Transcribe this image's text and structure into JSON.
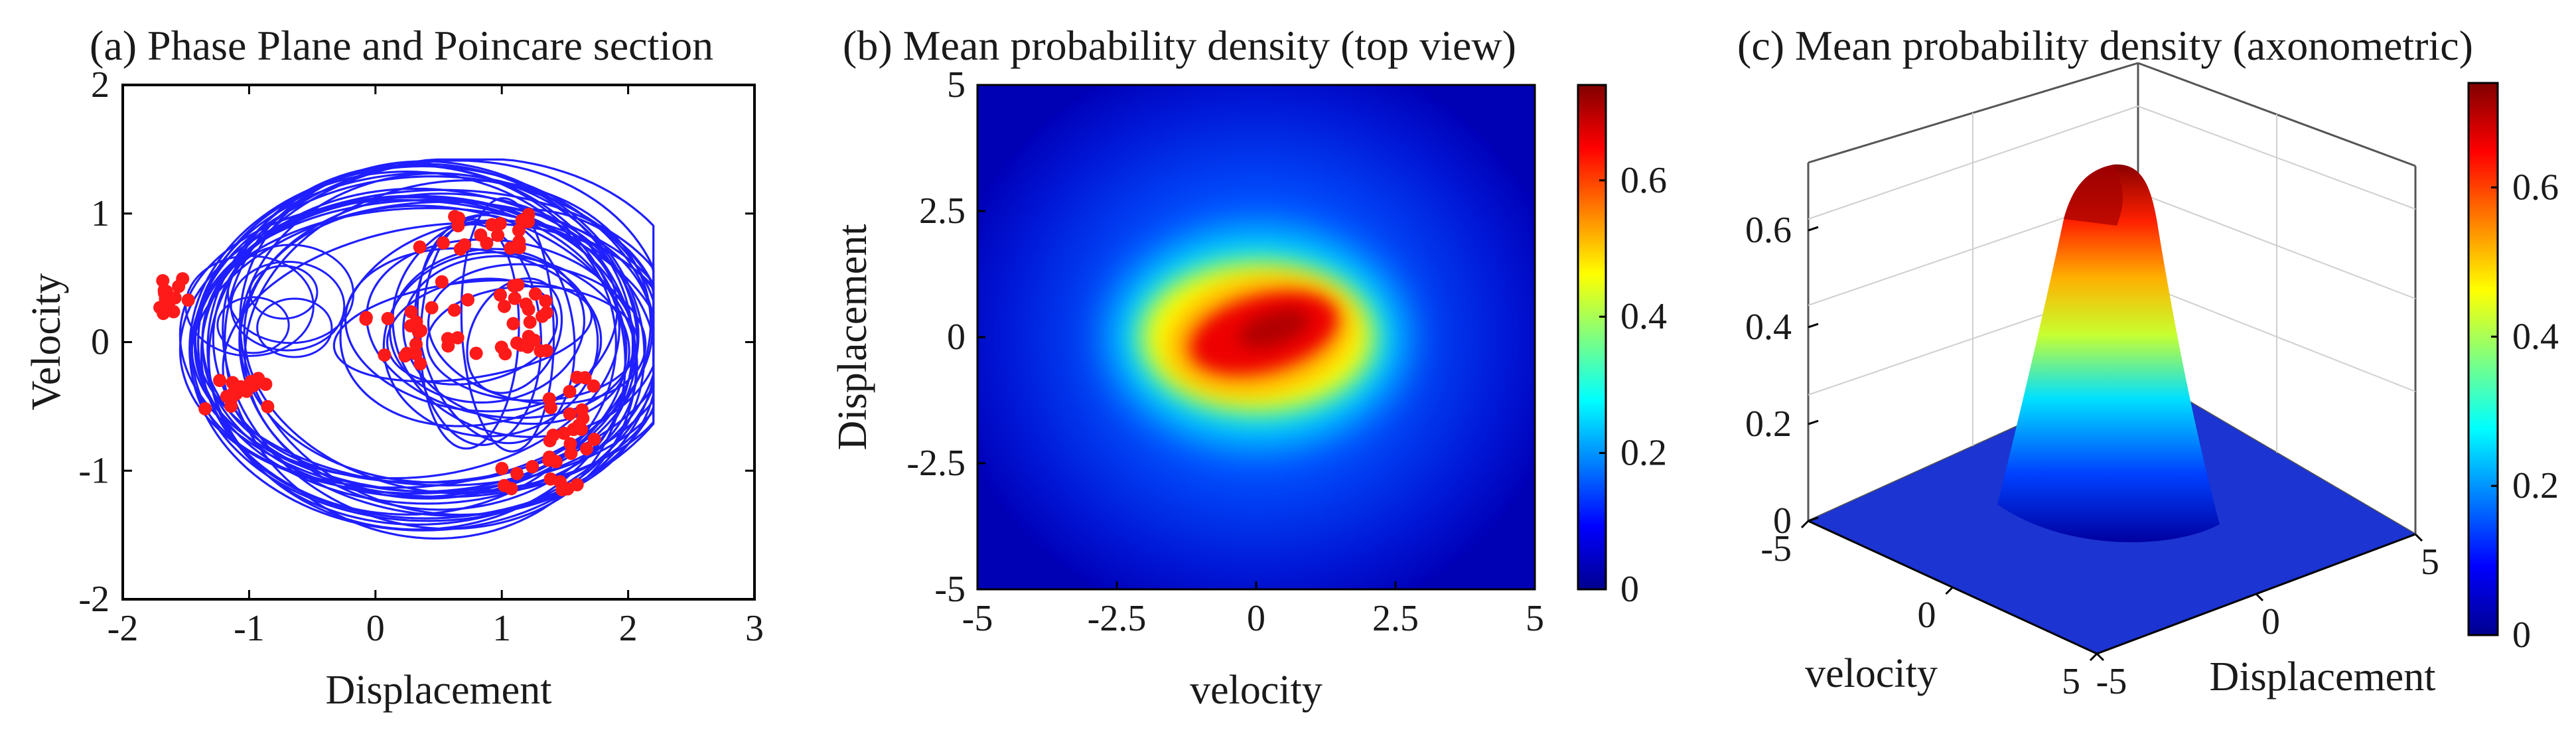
{
  "figure": "three-panel figure",
  "chart_data": [
    {
      "panel": "a",
      "type": "line",
      "title": "(a) Phase Plane and Poincare section",
      "xlabel": "Displacement",
      "ylabel": "Velocity",
      "xlim": [
        -2,
        3
      ],
      "ylim": [
        -2,
        2
      ],
      "xticks": [
        "-2",
        "-1",
        "0",
        "1",
        "2",
        "3"
      ],
      "yticks": [
        "-2",
        "-1",
        "0",
        "1",
        "2"
      ],
      "series": [
        {
          "name": "phase trajectory",
          "color": "#1f1fff"
        },
        {
          "name": "Poincare section",
          "color": "#ff1a1a"
        }
      ]
    },
    {
      "panel": "b",
      "type": "heatmap",
      "title": "(b) Mean probability density (top view)",
      "xlabel": "velocity",
      "ylabel": "Displacement",
      "xlim": [
        -5,
        5
      ],
      "ylim": [
        -5,
        5
      ],
      "xticks": [
        "-5",
        "-2.5",
        "0",
        "2.5",
        "5"
      ],
      "yticks": [
        "-5",
        "-2.5",
        "0",
        "2.5",
        "5"
      ],
      "colorbar": {
        "min": 0,
        "max": 0.74,
        "ticks": [
          "0",
          "0.2",
          "0.4",
          "0.6"
        ]
      },
      "peak": {
        "x": 0.5,
        "y": 0.3,
        "value": 0.74
      }
    },
    {
      "panel": "c",
      "type": "surface",
      "title": "(c) Mean probability density (axonometric)",
      "xlabel": "velocity",
      "ylabel": "Displacement",
      "zlim": [
        0,
        0.74
      ],
      "xticks": [
        "-5",
        "0",
        "5"
      ],
      "yticks": [
        "-5",
        "0",
        "5"
      ],
      "zticks": [
        "0",
        "0.2",
        "0.4",
        "0.6"
      ],
      "colorbar": {
        "min": 0,
        "max": 0.74,
        "ticks": [
          "0",
          "0.2",
          "0.4",
          "0.6"
        ]
      }
    }
  ]
}
